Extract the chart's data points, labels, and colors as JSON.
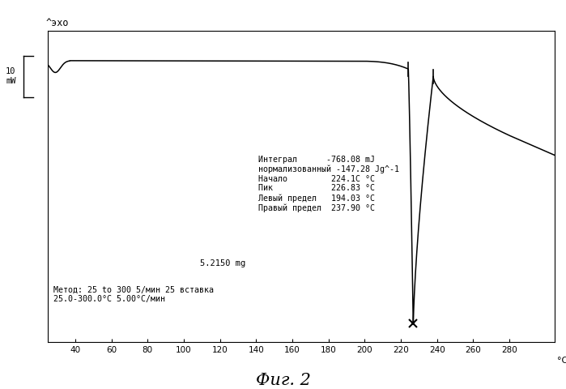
{
  "title": "^эхо",
  "xlabel": "°C",
  "xlim": [
    25,
    305
  ],
  "ylim": [
    -13,
    2.8
  ],
  "xticks": [
    40,
    60,
    80,
    100,
    120,
    140,
    160,
    180,
    200,
    220,
    240,
    260,
    280
  ],
  "background_color": "#ffffff",
  "line_color": "#000000",
  "annotation_lines": [
    "Интеграл      -768.08 mJ",
    "нормализованный -147.28 Jg^-1",
    "Начало         224.1C °C",
    "Пик            226.83 °C",
    "Левый предел   194.03 °C",
    "Правый предел  237.90 °C"
  ],
  "sample_text": "5.2150 mg",
  "method_text": "Метод: 25 to 300 5/мин 25 вставка\n25.0-300.0°C 5.00°C/мин",
  "fig_label": "Фиг. 2",
  "onset_x": 224.1,
  "right_limit_x": 237.9,
  "peak_x": 226.83,
  "baseline_y": 1.3,
  "peak_min_y": -12.2,
  "recovery_y": 0.5,
  "post_recovery_y": -2.5
}
